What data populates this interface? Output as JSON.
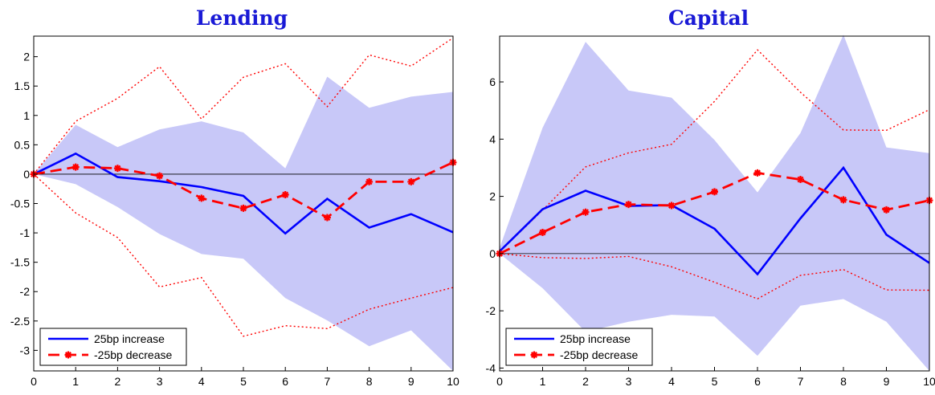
{
  "chart_data": [
    {
      "type": "line",
      "title": "Lending",
      "x": [
        0,
        1,
        2,
        3,
        4,
        5,
        6,
        7,
        8,
        9,
        10
      ],
      "xlim": [
        0,
        10
      ],
      "ylim": [
        -3.35,
        2.35
      ],
      "x_ticks": [
        0,
        1,
        2,
        3,
        4,
        5,
        6,
        7,
        8,
        9,
        10
      ],
      "y_ticks": [
        -3,
        -2.5,
        -2,
        -1.5,
        -1,
        -0.5,
        0,
        0.5,
        1,
        1.5,
        2
      ],
      "x_tick_labels": [
        "0",
        "1",
        "2",
        "3",
        "4",
        "5",
        "6",
        "7",
        "8",
        "9",
        "10"
      ],
      "y_tick_labels": [
        "-3",
        "-2.5",
        "-2",
        "-1.5",
        "-1",
        "-0.5",
        "0",
        "0.5",
        "1",
        "1.5",
        "2"
      ],
      "legend_position": "bottom-left",
      "series": [
        {
          "name": "25bp increase",
          "style": "solid",
          "color": "#0000ff",
          "values": [
            0,
            0.35,
            -0.05,
            -0.12,
            -0.22,
            -0.37,
            -1.01,
            -0.42,
            -0.91,
            -0.68,
            -0.99
          ]
        },
        {
          "name": "-25bp decrease",
          "style": "dashed",
          "marker": "star",
          "color": "#ff0000",
          "values": [
            0,
            0.12,
            0.1,
            -0.03,
            -0.41,
            -0.58,
            -0.35,
            -0.74,
            -0.13,
            -0.13,
            0.2
          ]
        }
      ],
      "band_increase": {
        "color": "#c8c8f8",
        "upper": [
          0,
          0.84,
          0.46,
          0.76,
          0.9,
          0.71,
          0.1,
          1.66,
          1.13,
          1.32,
          1.4
        ],
        "lower": [
          0,
          -0.17,
          -0.56,
          -1.02,
          -1.36,
          -1.44,
          -2.11,
          -2.49,
          -2.93,
          -2.66,
          -3.35
        ]
      },
      "band_decrease": {
        "color": "#ff0000",
        "upper": [
          0,
          0.9,
          1.29,
          1.83,
          0.94,
          1.65,
          1.88,
          1.15,
          2.03,
          1.84,
          2.32
        ],
        "lower": [
          0,
          -0.66,
          -1.08,
          -1.92,
          -1.76,
          -2.76,
          -2.58,
          -2.63,
          -2.3,
          -2.11,
          -1.93
        ]
      }
    },
    {
      "type": "line",
      "title": "Capital",
      "x": [
        0,
        1,
        2,
        3,
        4,
        5,
        6,
        7,
        8,
        9,
        10
      ],
      "xlim": [
        0,
        10
      ],
      "ylim": [
        -4.1,
        7.6
      ],
      "x_ticks": [
        0,
        1,
        2,
        3,
        4,
        5,
        6,
        7,
        8,
        9,
        10
      ],
      "y_ticks": [
        -4,
        -2,
        0,
        2,
        4,
        6
      ],
      "x_tick_labels": [
        "0",
        "1",
        "2",
        "3",
        "4",
        "5",
        "6",
        "7",
        "8",
        "9",
        "10"
      ],
      "y_tick_labels": [
        "-4",
        "-2",
        "0",
        "2",
        "4",
        "6"
      ],
      "legend_position": "bottom-left",
      "series": [
        {
          "name": "25bp increase",
          "style": "solid",
          "color": "#0000ff",
          "values": [
            0.08,
            1.55,
            2.2,
            1.67,
            1.69,
            0.87,
            -0.72,
            1.23,
            3.0,
            0.66,
            -0.33
          ]
        },
        {
          "name": "-25bp decrease",
          "style": "dashed",
          "marker": "star",
          "color": "#ff0000",
          "values": [
            0,
            0.74,
            1.45,
            1.72,
            1.68,
            2.16,
            2.82,
            2.59,
            1.88,
            1.53,
            1.86
          ]
        }
      ],
      "band_increase": {
        "color": "#c8c8f8",
        "upper": [
          0.2,
          4.4,
          7.4,
          5.7,
          5.45,
          3.97,
          2.14,
          4.21,
          7.65,
          3.71,
          3.51
        ],
        "lower": [
          0,
          -1.21,
          -2.73,
          -2.38,
          -2.14,
          -2.2,
          -3.57,
          -1.82,
          -1.59,
          -2.38,
          -4.1
        ]
      },
      "band_decrease": {
        "color": "#ff0000",
        "upper": [
          0.06,
          1.52,
          3.03,
          3.52,
          3.82,
          5.32,
          7.12,
          5.64,
          4.32,
          4.31,
          5.03
        ],
        "lower": [
          0,
          -0.14,
          -0.17,
          -0.1,
          -0.46,
          -1.0,
          -1.58,
          -0.76,
          -0.56,
          -1.27,
          -1.28
        ]
      }
    }
  ]
}
